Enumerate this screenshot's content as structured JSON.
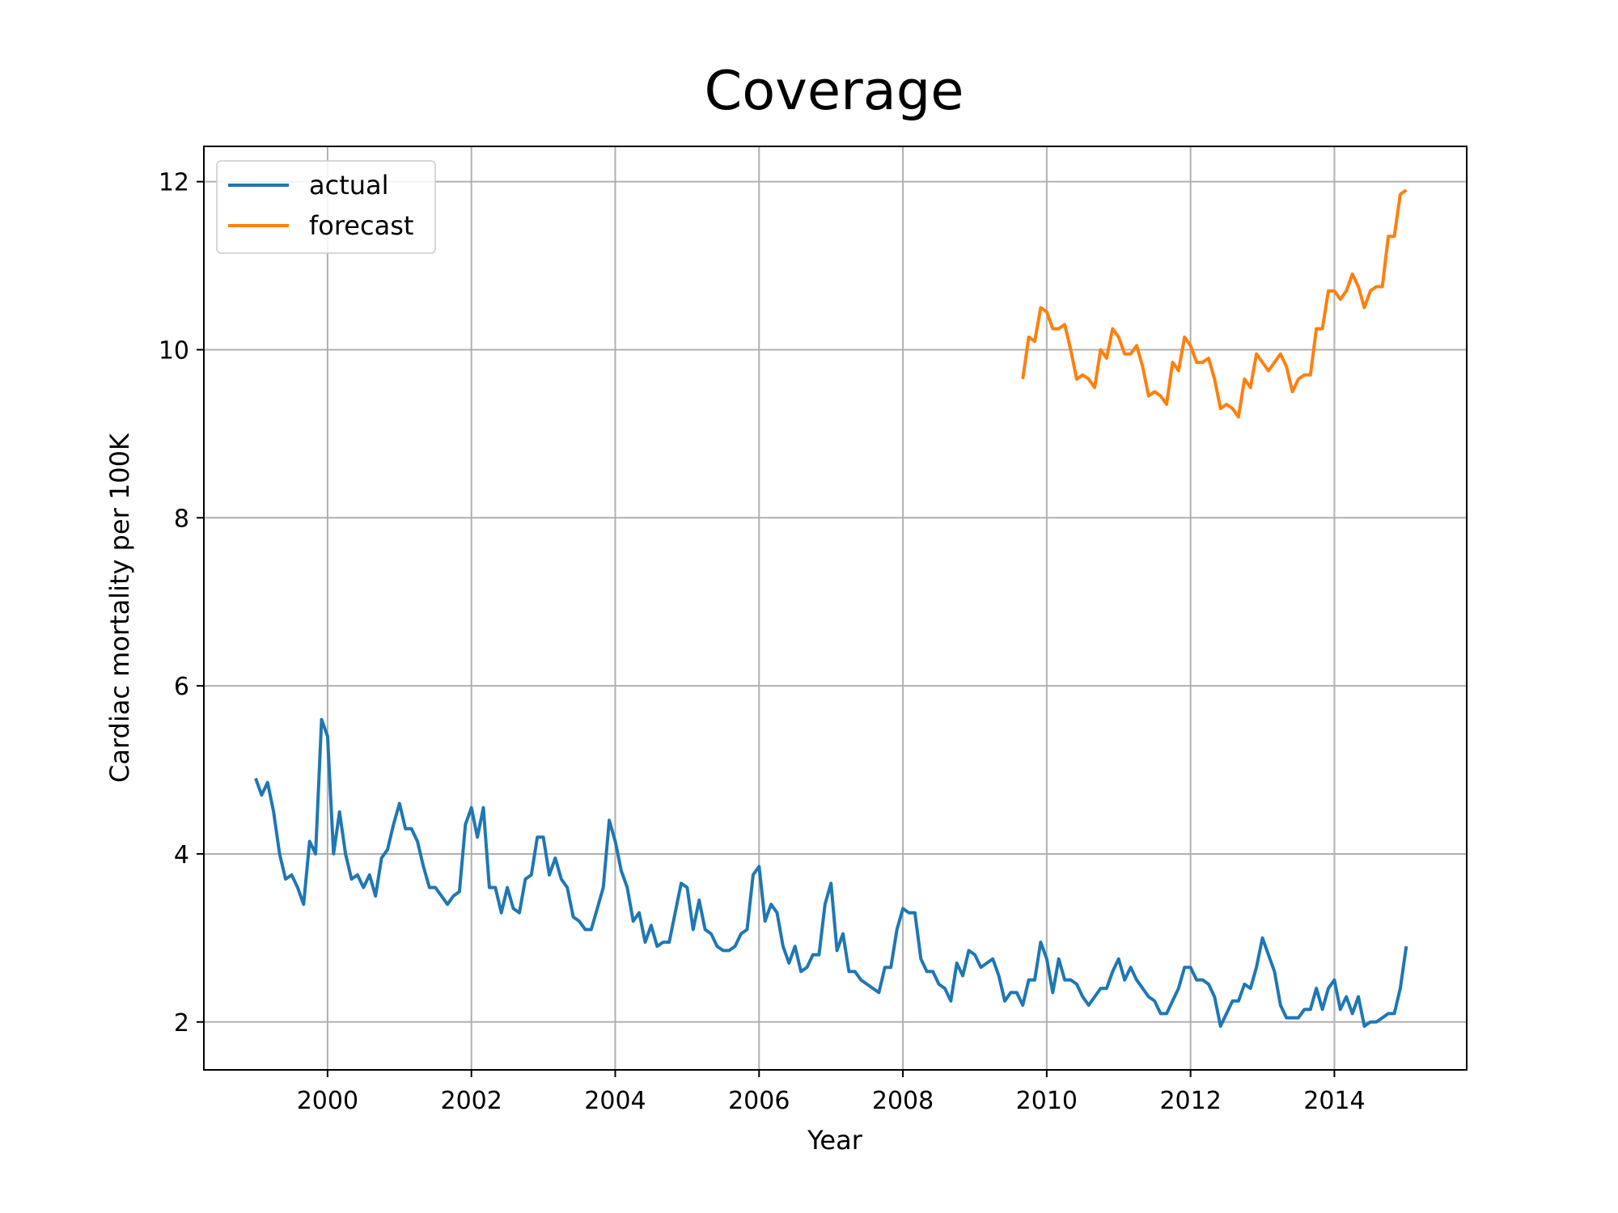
{
  "chart_data": {
    "type": "line",
    "title": "Coverage",
    "xlabel": "Year",
    "ylabel": "Cardiac mortality per 100K",
    "xlim": [
      1998.28,
      2015.84
    ],
    "ylim": [
      1.43,
      12.42
    ],
    "x_ticks": [
      2000,
      2002,
      2004,
      2006,
      2008,
      2010,
      2012,
      2014
    ],
    "x_tick_labels": [
      "2000",
      "2002",
      "2004",
      "2006",
      "2008",
      "2010",
      "2012",
      "2014"
    ],
    "y_ticks": [
      2,
      4,
      6,
      8,
      10,
      12
    ],
    "y_tick_labels": [
      "2",
      "4",
      "6",
      "8",
      "10",
      "12"
    ],
    "grid": true,
    "legend": {
      "position": "top-left",
      "entries": [
        "actual",
        "forecast"
      ]
    },
    "series": [
      {
        "name": "actual",
        "color": "#1f77b4",
        "start_year": 1999.0,
        "step_months": 1,
        "values": [
          4.9,
          4.7,
          4.85,
          4.5,
          4.0,
          3.7,
          3.75,
          3.6,
          3.4,
          4.15,
          4.0,
          5.6,
          5.4,
          4.0,
          4.5,
          4.0,
          3.7,
          3.75,
          3.6,
          3.75,
          3.5,
          3.95,
          4.05,
          4.35,
          4.6,
          4.3,
          4.3,
          4.15,
          3.85,
          3.6,
          3.6,
          3.5,
          3.4,
          3.5,
          3.55,
          4.35,
          4.55,
          4.2,
          4.55,
          3.6,
          3.6,
          3.3,
          3.6,
          3.35,
          3.3,
          3.7,
          3.75,
          4.2,
          4.2,
          3.75,
          3.95,
          3.7,
          3.6,
          3.25,
          3.2,
          3.1,
          3.1,
          3.35,
          3.6,
          4.4,
          4.15,
          3.8,
          3.6,
          3.2,
          3.3,
          2.95,
          3.15,
          2.9,
          2.95,
          2.95,
          3.3,
          3.65,
          3.6,
          3.1,
          3.45,
          3.1,
          3.05,
          2.9,
          2.85,
          2.85,
          2.9,
          3.05,
          3.1,
          3.75,
          3.85,
          3.2,
          3.4,
          3.3,
          2.9,
          2.7,
          2.9,
          2.6,
          2.65,
          2.8,
          2.8,
          3.4,
          3.65,
          2.85,
          3.05,
          2.6,
          2.6,
          2.5,
          2.45,
          2.4,
          2.35,
          2.65,
          2.65,
          3.1,
          3.35,
          3.3,
          3.3,
          2.75,
          2.6,
          2.6,
          2.45,
          2.4,
          2.25,
          2.7,
          2.55,
          2.85,
          2.8,
          2.65,
          2.7,
          2.75,
          2.55,
          2.25,
          2.35,
          2.35,
          2.2,
          2.5,
          2.5,
          2.95,
          2.75,
          2.35,
          2.75,
          2.5,
          2.5,
          2.45,
          2.3,
          2.2,
          2.3,
          2.4,
          2.4,
          2.6,
          2.75,
          2.5,
          2.65,
          2.5,
          2.4,
          2.3,
          2.25,
          2.1,
          2.1,
          2.25,
          2.4,
          2.65,
          2.65,
          2.5,
          2.5,
          2.45,
          2.3,
          1.95,
          2.1,
          2.25,
          2.25,
          2.45,
          2.4,
          2.65,
          3.0,
          2.8,
          2.6,
          2.2,
          2.05,
          2.05,
          2.05,
          2.15,
          2.15,
          2.4,
          2.15,
          2.4,
          2.5,
          2.15,
          2.3,
          2.1,
          2.3,
          1.95,
          2.0,
          2.0,
          2.05,
          2.1,
          2.1,
          2.4,
          2.9
        ]
      },
      {
        "name": "forecast",
        "color": "#ff7f0e",
        "start_year": 2009.6667,
        "step_months": 1,
        "values": [
          9.65,
          10.15,
          10.1,
          10.5,
          10.45,
          10.25,
          10.25,
          10.3,
          10.0,
          9.65,
          9.7,
          9.65,
          9.55,
          10.0,
          9.9,
          10.25,
          10.15,
          9.95,
          9.95,
          10.05,
          9.8,
          9.45,
          9.5,
          9.45,
          9.35,
          9.85,
          9.75,
          10.15,
          10.05,
          9.85,
          9.85,
          9.9,
          9.65,
          9.3,
          9.35,
          9.3,
          9.2,
          9.65,
          9.55,
          9.95,
          9.85,
          9.75,
          9.85,
          9.95,
          9.8,
          9.5,
          9.65,
          9.7,
          9.7,
          10.25,
          10.25,
          10.7,
          10.7,
          10.6,
          10.7,
          10.9,
          10.75,
          10.5,
          10.7,
          10.75,
          10.75,
          11.35,
          11.35,
          11.85,
          11.9
        ]
      }
    ]
  }
}
